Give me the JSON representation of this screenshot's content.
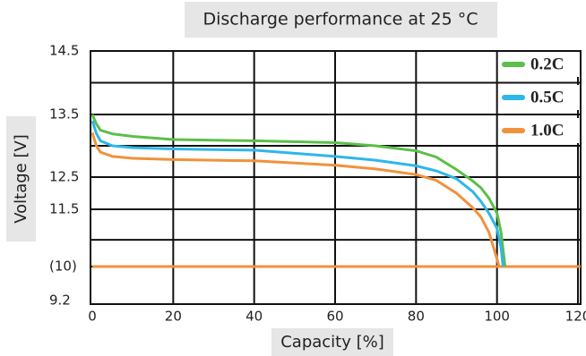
{
  "chart_data": {
    "type": "line",
    "title": "Discharge performance at 25 °C",
    "x_label": "Capacity [%]",
    "y_label": "Voltage [V]",
    "xlim": [
      0,
      120
    ],
    "xticks": [
      0,
      20,
      40,
      60,
      80,
      100,
      120
    ],
    "ylim": [
      9.2,
      14.5
    ],
    "yticks": [
      14.5,
      13.5,
      12.5,
      11.5,
      {
        "value": 10,
        "label": "(10)"
      },
      9.2
    ],
    "y_minor_grid": [
      14,
      13,
      10.7
    ],
    "grid": true,
    "legend": "upper right",
    "reference_line": {
      "value": 10,
      "color": "#f0923b"
    },
    "series": [
      {
        "name": "0.2C",
        "color": "#5cbf4a",
        "x": [
          0,
          1,
          2,
          5,
          10,
          20,
          40,
          60,
          70,
          80,
          85,
          90,
          94,
          96,
          98,
          100,
          101,
          102
        ],
        "values": [
          13.5,
          13.35,
          13.25,
          13.19,
          13.15,
          13.1,
          13.08,
          13.05,
          13.0,
          12.92,
          12.82,
          12.62,
          12.38,
          12.17,
          11.85,
          11.4,
          10.9,
          10.0
        ]
      },
      {
        "name": "0.5C",
        "color": "#2fb6ea",
        "x": [
          0,
          1,
          2,
          5,
          10,
          20,
          40,
          60,
          70,
          80,
          85,
          90,
          94,
          96,
          98,
          100,
          101,
          101.5
        ],
        "values": [
          13.4,
          13.2,
          13.08,
          13.0,
          12.97,
          12.95,
          12.93,
          12.83,
          12.77,
          12.68,
          12.6,
          12.45,
          12.05,
          11.75,
          11.4,
          11.0,
          10.5,
          10.0
        ]
      },
      {
        "name": "1.0C",
        "color": "#f0923b",
        "x": [
          0,
          1,
          2,
          5,
          10,
          20,
          40,
          60,
          70,
          80,
          85,
          90,
          94,
          96,
          98,
          100,
          100.5
        ],
        "values": [
          13.21,
          13.0,
          12.9,
          12.83,
          12.8,
          12.78,
          12.76,
          12.69,
          12.63,
          12.54,
          12.4,
          12.0,
          11.55,
          11.3,
          10.9,
          10.2,
          10.0
        ]
      }
    ]
  }
}
